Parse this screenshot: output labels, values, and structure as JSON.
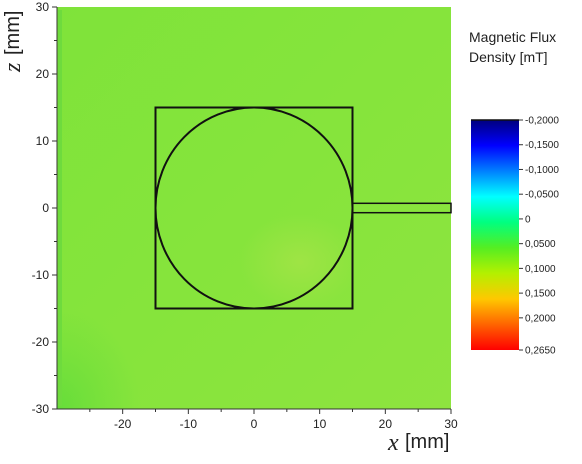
{
  "chart_data": {
    "type": "heatmap",
    "title": "",
    "x_axis": {
      "symbol": "x",
      "unit": "[mm]",
      "range": [
        -30,
        30
      ],
      "ticks": [
        -20,
        -10,
        0,
        10,
        20,
        30
      ],
      "tick_labels": [
        "-20",
        "-10",
        "0",
        "10",
        "20",
        "30"
      ]
    },
    "y_axis": {
      "symbol": "z",
      "unit": "[mm]",
      "range": [
        -30,
        30
      ],
      "ticks": [
        30,
        20,
        10,
        0,
        -10,
        -20,
        -30
      ],
      "tick_labels": [
        "30",
        "20",
        "10",
        "0",
        "-10",
        "-20",
        "-30"
      ]
    },
    "grid": false,
    "field_values_mT": {
      "typical": 0.07,
      "range": [
        0.05,
        0.1
      ],
      "lower_left_corner": 0.045
    },
    "overlay_shapes": {
      "square": {
        "x": [
          -15,
          15
        ],
        "z": [
          -15,
          15
        ]
      },
      "circle": {
        "center": [
          0,
          0
        ],
        "radius": 15
      },
      "bar": {
        "x": [
          15,
          30
        ],
        "z": [
          -0.7,
          0.7
        ]
      }
    },
    "colorbar": {
      "title_lines": [
        "Magnetic Flux",
        "Density [mT]"
      ],
      "range": [
        -0.2,
        0.265
      ],
      "tick_values": [
        -0.2,
        -0.15,
        -0.1,
        -0.05,
        0,
        0.05,
        0.1,
        0.15,
        0.2,
        0.265
      ],
      "tick_labels": [
        "-0,2000",
        "-0,1500",
        "-0,1000",
        "-0,0500",
        "0",
        "0,0500",
        "0,1000",
        "0,1500",
        "0,2000",
        "0,2650"
      ],
      "colors": [
        "#00007e",
        "#0000ff",
        "#0080ff",
        "#00ffff",
        "#00ff80",
        "#55ee22",
        "#b4f000",
        "#ffc800",
        "#ff6400",
        "#ff0000"
      ]
    }
  }
}
